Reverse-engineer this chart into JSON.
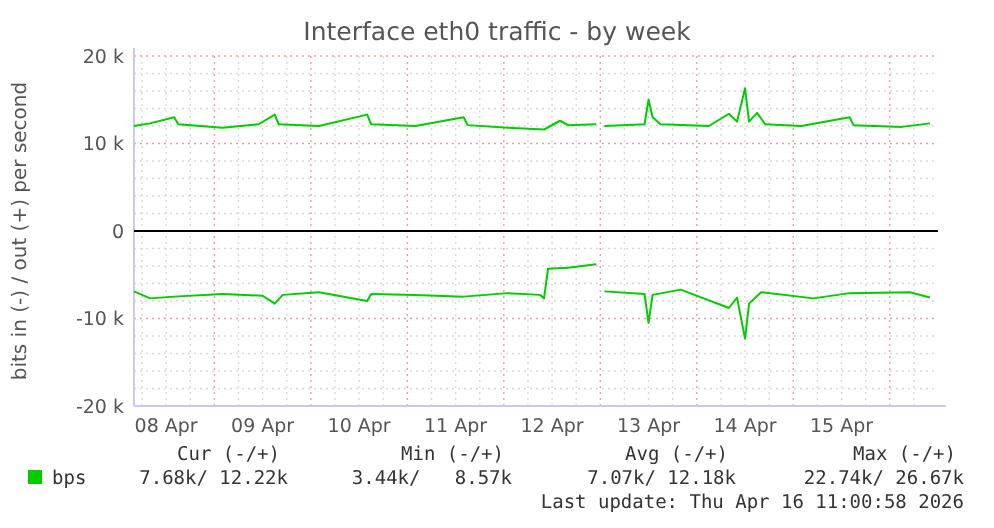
{
  "chart_data": {
    "type": "line",
    "title": "Interface eth0 traffic - by week",
    "ylabel": "bits in (-) / out (+) per second",
    "xlim": [
      "2026-04-08T04:00",
      "2026-04-16T12:00"
    ],
    "xticks": [
      {
        "value": "2026-04-08T06:00",
        "label": null
      },
      {
        "value": "2026-04-08T12:00",
        "label": "08 Apr"
      },
      {
        "value": "2026-04-08T18:00",
        "label": null
      },
      {
        "value": "2026-04-09T00:00",
        "label": null
      },
      {
        "value": "2026-04-09T06:00",
        "label": null
      },
      {
        "value": "2026-04-09T12:00",
        "label": "09 Apr"
      },
      {
        "value": "2026-04-09T18:00",
        "label": null
      },
      {
        "value": "2026-04-10T00:00",
        "label": null
      },
      {
        "value": "2026-04-10T06:00",
        "label": null
      },
      {
        "value": "2026-04-10T12:00",
        "label": "10 Apr"
      },
      {
        "value": "2026-04-10T18:00",
        "label": null
      },
      {
        "value": "2026-04-11T00:00",
        "label": null
      },
      {
        "value": "2026-04-11T06:00",
        "label": null
      },
      {
        "value": "2026-04-11T12:00",
        "label": "11 Apr"
      },
      {
        "value": "2026-04-11T18:00",
        "label": null
      },
      {
        "value": "2026-04-12T00:00",
        "label": null
      },
      {
        "value": "2026-04-12T06:00",
        "label": null
      },
      {
        "value": "2026-04-12T12:00",
        "label": "12 Apr"
      },
      {
        "value": "2026-04-12T18:00",
        "label": null
      },
      {
        "value": "2026-04-13T00:00",
        "label": null
      },
      {
        "value": "2026-04-13T06:00",
        "label": null
      },
      {
        "value": "2026-04-13T12:00",
        "label": "13 Apr"
      },
      {
        "value": "2026-04-13T18:00",
        "label": null
      },
      {
        "value": "2026-04-14T00:00",
        "label": null
      },
      {
        "value": "2026-04-14T06:00",
        "label": null
      },
      {
        "value": "2026-04-14T12:00",
        "label": "14 Apr"
      },
      {
        "value": "2026-04-14T18:00",
        "label": null
      },
      {
        "value": "2026-04-15T00:00",
        "label": null
      },
      {
        "value": "2026-04-15T06:00",
        "label": null
      },
      {
        "value": "2026-04-15T12:00",
        "label": "15 Apr"
      },
      {
        "value": "2026-04-15T18:00",
        "label": null
      },
      {
        "value": "2026-04-16T00:00",
        "label": null
      },
      {
        "value": "2026-04-16T06:00",
        "label": null
      }
    ],
    "ylim": [
      -20000,
      20000
    ],
    "yticks": [
      {
        "value": -20000,
        "label": "-20 k"
      },
      {
        "value": -18000,
        "label": null
      },
      {
        "value": -16000,
        "label": null
      },
      {
        "value": -14000,
        "label": null
      },
      {
        "value": -12000,
        "label": null
      },
      {
        "value": -10000,
        "label": "-10 k"
      },
      {
        "value": -8000,
        "label": null
      },
      {
        "value": -6000,
        "label": null
      },
      {
        "value": -4000,
        "label": null
      },
      {
        "value": -2000,
        "label": null
      },
      0,
      {
        "value": 2000,
        "label": null
      },
      {
        "value": 4000,
        "label": null
      },
      {
        "value": 6000,
        "label": null
      },
      {
        "value": 8000,
        "label": null
      },
      {
        "value": 10000,
        "label": "10 k"
      },
      {
        "value": 12000,
        "label": null
      },
      {
        "value": 14000,
        "label": null
      },
      {
        "value": 16000,
        "label": null
      },
      {
        "value": 18000,
        "label": null
      },
      {
        "value": 20000,
        "label": "20 k"
      }
    ],
    "grid": true,
    "legend": "bottom left",
    "marker": "none",
    "line_style": "solid",
    "ref_lines": [
      {
        "axis": "y",
        "value": 0,
        "label": null,
        "color": "#000000"
      }
    ],
    "series": [
      {
        "name": "bps",
        "color": "#00cc00",
        "x": [
          "2026-04-08T04:00",
          "2026-04-08T08:00",
          "2026-04-08T14:00",
          "2026-04-08T15:00",
          "2026-04-09T02:00",
          "2026-04-09T11:00",
          "2026-04-09T15:00",
          "2026-04-09T16:00",
          "2026-04-10T02:00",
          "2026-04-10T14:00",
          "2026-04-10T15:00",
          "2026-04-11T02:00",
          "2026-04-11T14:00",
          "2026-04-11T15:00",
          "2026-04-12T01:00",
          "2026-04-12T10:00",
          "2026-04-12T14:00",
          "2026-04-12T16:00",
          "2026-04-12T23:00",
          "2026-04-13T00:00",
          "2026-04-13T01:00",
          "2026-04-13T11:00",
          "2026-04-13T12:00",
          "2026-04-13T13:00",
          "2026-04-13T15:00",
          "2026-04-14T03:00",
          "2026-04-14T08:00",
          "2026-04-14T10:00",
          "2026-04-14T12:00",
          "2026-04-14T13:00",
          "2026-04-14T15:00",
          "2026-04-14T17:00",
          "2026-04-15T02:00",
          "2026-04-15T14:00",
          "2026-04-15T15:00",
          "2026-04-16T03:00",
          "2026-04-16T10:00"
        ],
        "values": [
          12000,
          12300,
          13000,
          12200,
          11800,
          12200,
          13300,
          12200,
          12000,
          13300,
          12200,
          12000,
          13000,
          12100,
          11800,
          11600,
          12600,
          12100,
          12200,
          null,
          12000,
          12200,
          15000,
          13000,
          12200,
          12000,
          13400,
          12500,
          16300,
          12500,
          13500,
          12200,
          12000,
          13000,
          12100,
          11900,
          12300
        ]
      },
      {
        "color": "#00cc00",
        "x": [
          "2026-04-08T04:00",
          "2026-04-08T08:00",
          "2026-04-08T14:00",
          "2026-04-09T02:00",
          "2026-04-09T12:00",
          "2026-04-09T15:00",
          "2026-04-09T17:00",
          "2026-04-10T02:00",
          "2026-04-10T14:00",
          "2026-04-10T15:00",
          "2026-04-11T02:00",
          "2026-04-11T14:00",
          "2026-04-12T01:00",
          "2026-04-12T09:00",
          "2026-04-12T10:00",
          "2026-04-12T11:00",
          "2026-04-12T16:00",
          "2026-04-12T23:00",
          "2026-04-13T00:00",
          "2026-04-13T01:00",
          "2026-04-13T11:00",
          "2026-04-13T12:00",
          "2026-04-13T13:00",
          "2026-04-13T20:00",
          "2026-04-14T08:00",
          "2026-04-14T10:00",
          "2026-04-14T12:00",
          "2026-04-14T13:00",
          "2026-04-14T16:00",
          "2026-04-15T05:00",
          "2026-04-15T14:00",
          "2026-04-16T05:00",
          "2026-04-16T10:00"
        ],
        "values": [
          -6900,
          -7700,
          -7500,
          -7200,
          -7400,
          -8300,
          -7300,
          -7000,
          -8000,
          -7200,
          -7300,
          -7500,
          -7100,
          -7300,
          -7700,
          -4300,
          -4200,
          -3800,
          null,
          -6900,
          -7200,
          -10500,
          -7300,
          -6700,
          -8800,
          -7600,
          -12300,
          -8300,
          -7000,
          -7700,
          -7100,
          -7000,
          -7600
        ]
      }
    ],
    "annotations": [
      "Cur (-/+)",
      "Min (-/+)",
      "Avg (-/+)",
      "Max (-/+)",
      "7.68k/ 12.22k",
      "3.44k/   8.57k",
      "7.07k/ 12.18k",
      "22.74k/ 26.67k",
      "Last update: Thu Apr 16 11:00:58 2026"
    ]
  }
}
